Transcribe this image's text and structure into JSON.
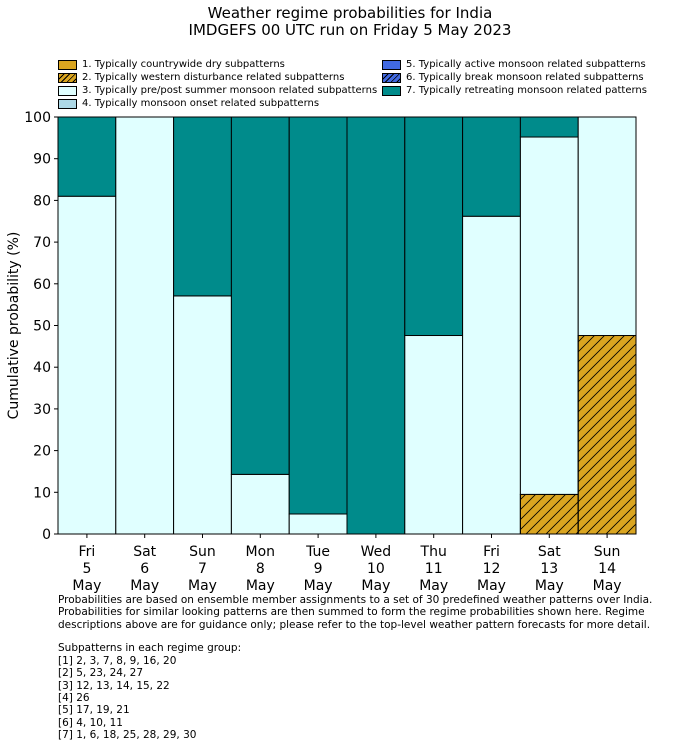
{
  "title_line1": "Weather regime probabilities for India",
  "title_line2": "IMDGEFS 00 UTC run on Friday 5 May 2023",
  "chart_data": {
    "type": "bar",
    "stacked": true,
    "ylabel": "Cumulative probability (%)",
    "ylim": [
      0,
      100
    ],
    "yticks": [
      0,
      10,
      20,
      30,
      40,
      50,
      60,
      70,
      80,
      90,
      100
    ],
    "categories": [
      [
        "Fri",
        "5",
        "May"
      ],
      [
        "Sat",
        "6",
        "May"
      ],
      [
        "Sun",
        "7",
        "May"
      ],
      [
        "Mon",
        "8",
        "May"
      ],
      [
        "Tue",
        "9",
        "May"
      ],
      [
        "Wed",
        "10",
        "May"
      ],
      [
        "Thu",
        "11",
        "May"
      ],
      [
        "Fri",
        "12",
        "May"
      ],
      [
        "Sat",
        "13",
        "May"
      ],
      [
        "Sun",
        "14",
        "May"
      ]
    ],
    "legend_placement": "top",
    "series": [
      {
        "name": "1. Typically countrywide dry subpatterns",
        "color": "#DAA520",
        "hatch": false,
        "values": [
          0,
          0,
          0,
          0,
          0,
          0,
          0,
          0,
          0,
          0
        ]
      },
      {
        "name": "2. Typically western disturbance related subpatterns",
        "color": "#DAA520",
        "hatch": true,
        "values": [
          0,
          0,
          0,
          0,
          0,
          0,
          0,
          0,
          9.5,
          47.6
        ]
      },
      {
        "name": "3. Typically pre/post summer monsoon related subpatterns",
        "color": "#E0FFFF",
        "hatch": false,
        "values": [
          81.0,
          100,
          57.1,
          14.3,
          4.8,
          0,
          47.6,
          76.2,
          85.7,
          52.4
        ]
      },
      {
        "name": "4. Typically monsoon onset related subpatterns",
        "color": "#ADD8E6",
        "hatch": false,
        "values": [
          0,
          0,
          0,
          0,
          0,
          0,
          0,
          0,
          0,
          0
        ]
      },
      {
        "name": "5. Typically active monsoon related subpatterns",
        "color": "#4169E1",
        "hatch": false,
        "values": [
          0,
          0,
          0,
          0,
          0,
          0,
          0,
          0,
          0,
          0
        ]
      },
      {
        "name": "6. Typically break monsoon related subpatterns",
        "color": "#4169E1",
        "hatch": true,
        "values": [
          0,
          0,
          0,
          0,
          0,
          0,
          0,
          0,
          0,
          0
        ]
      },
      {
        "name": "7. Typically retreating monsoon related patterns",
        "color": "#008B8B",
        "hatch": false,
        "values": [
          19.0,
          0,
          42.9,
          85.7,
          95.2,
          100,
          52.4,
          23.8,
          4.8,
          0
        ]
      }
    ]
  },
  "footer": {
    "note": "Probabilities are based on ensemble member assignments to a set of 30 predefined weather patterns over India.\nProbabilities for similar looking patterns are then summed to form the regime probabilities shown here. Regime\ndescriptions above are for guidance only; please refer to the top-level weather pattern forecasts for more detail.",
    "subpatterns_heading": "Subpatterns in each regime group:",
    "subpatterns": [
      "[1] 2, 3, 7, 8, 9, 16, 20",
      "[2] 5, 23, 24, 27",
      "[3] 12, 13, 14, 15, 22",
      "[4] 26",
      "[5] 17, 19, 21",
      "[6] 4, 10, 11",
      "[7] 1, 6, 18, 25, 28, 29, 30"
    ]
  }
}
